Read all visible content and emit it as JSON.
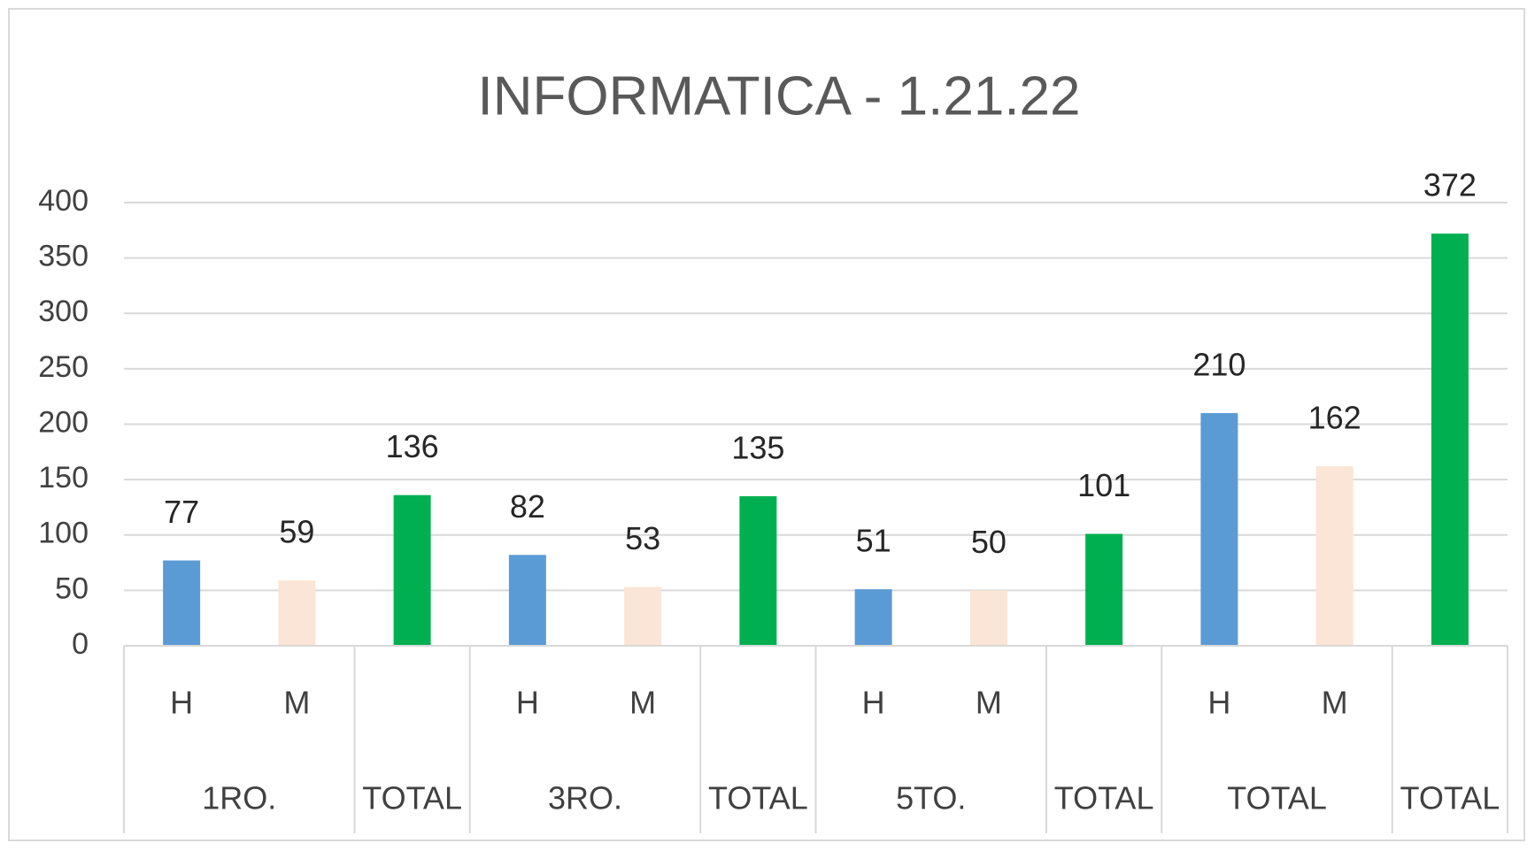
{
  "chart_data": {
    "type": "bar",
    "title": "INFORMATICA - 1.21.22",
    "categories": [
      "H",
      "M",
      null,
      "H",
      "M",
      null,
      "H",
      "M",
      null,
      "H",
      "M",
      null
    ],
    "groups": [
      {
        "label": "1RO.",
        "span": 2
      },
      {
        "label": "TOTAL",
        "span": 1
      },
      {
        "label": "3RO.",
        "span": 2
      },
      {
        "label": "TOTAL",
        "span": 1
      },
      {
        "label": "5TO.",
        "span": 2
      },
      {
        "label": "TOTAL",
        "span": 1
      },
      {
        "label": "TOTAL",
        "span": 2
      },
      {
        "label": "TOTAL",
        "span": 1
      }
    ],
    "values": [
      77,
      59,
      136,
      82,
      53,
      135,
      51,
      50,
      101,
      210,
      162,
      372
    ],
    "colors": [
      "#5b9bd5",
      "#fbe5d6",
      "#00b050",
      "#5b9bd5",
      "#fbe5d6",
      "#00b050",
      "#5b9bd5",
      "#fbe5d6",
      "#00b050",
      "#5b9bd5",
      "#fbe5d6",
      "#00b050"
    ],
    "ylim": [
      0,
      400
    ],
    "yticks": [
      0,
      50,
      100,
      150,
      200,
      250,
      300,
      350,
      400
    ],
    "grid": true
  }
}
